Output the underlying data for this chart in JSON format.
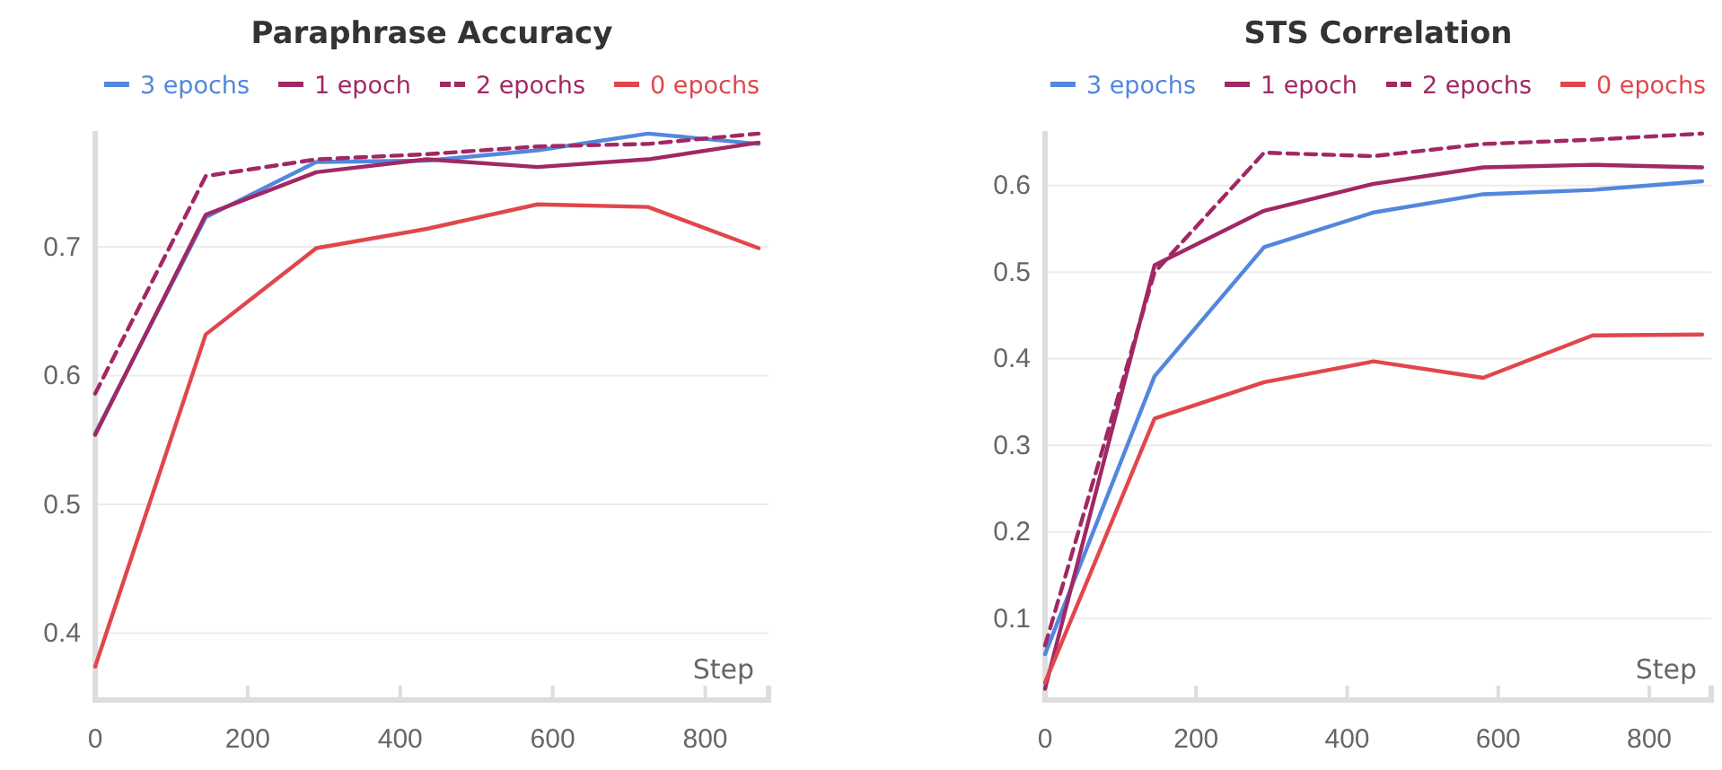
{
  "chart_data": [
    {
      "type": "line",
      "title": "Paraphrase Accuracy",
      "xlabel": "Step",
      "x": [
        0,
        145,
        290,
        435,
        580,
        725,
        870
      ],
      "xlim": [
        0,
        883
      ],
      "xticks": [
        0,
        200,
        400,
        600,
        800
      ],
      "ylim": [
        0.348,
        0.79
      ],
      "yticks": [
        0.4,
        0.5,
        0.6,
        0.7
      ],
      "grid": "y",
      "legend": "top",
      "series": [
        {
          "name": "3 epochs",
          "color": "#5387dd",
          "line_style": "solid",
          "values": [
            0.555,
            0.723,
            0.766,
            0.767,
            0.775,
            0.788,
            0.78
          ]
        },
        {
          "name": "1 epoch",
          "color": "#a12864",
          "line_style": "solid",
          "values": [
            0.554,
            0.725,
            0.758,
            0.768,
            0.762,
            0.768,
            0.781
          ]
        },
        {
          "name": "2 epochs",
          "color": "#a12864",
          "line_style": "dashed",
          "values": [
            0.586,
            0.755,
            0.768,
            0.772,
            0.778,
            0.78,
            0.788
          ]
        },
        {
          "name": "0 epochs",
          "color": "#e0474c",
          "line_style": "solid",
          "values": [
            0.374,
            0.632,
            0.699,
            0.714,
            0.733,
            0.731,
            0.699
          ]
        }
      ]
    },
    {
      "type": "line",
      "title": "STS Correlation",
      "xlabel": "Step",
      "x": [
        0,
        145,
        290,
        435,
        580,
        725,
        870
      ],
      "xlim": [
        0,
        882
      ],
      "xticks": [
        0,
        200,
        400,
        600,
        800
      ],
      "ylim": [
        0.006,
        0.663
      ],
      "yticks": [
        0.1,
        0.2,
        0.3,
        0.4,
        0.5,
        0.6
      ],
      "grid": "y",
      "legend": "top",
      "series": [
        {
          "name": "3 epochs",
          "color": "#5387dd",
          "line_style": "solid",
          "values": [
            0.059,
            0.38,
            0.529,
            0.569,
            0.59,
            0.595,
            0.605
          ]
        },
        {
          "name": "1 epoch",
          "color": "#a12864",
          "line_style": "solid",
          "values": [
            0.019,
            0.508,
            0.571,
            0.602,
            0.621,
            0.624,
            0.621
          ]
        },
        {
          "name": "2 epochs",
          "color": "#a12864",
          "line_style": "dashed",
          "values": [
            0.069,
            0.5,
            0.638,
            0.634,
            0.648,
            0.653,
            0.66
          ]
        },
        {
          "name": "0 epochs",
          "color": "#e0474c",
          "line_style": "solid",
          "values": [
            0.026,
            0.331,
            0.373,
            0.397,
            0.378,
            0.427,
            0.428
          ]
        }
      ]
    }
  ]
}
